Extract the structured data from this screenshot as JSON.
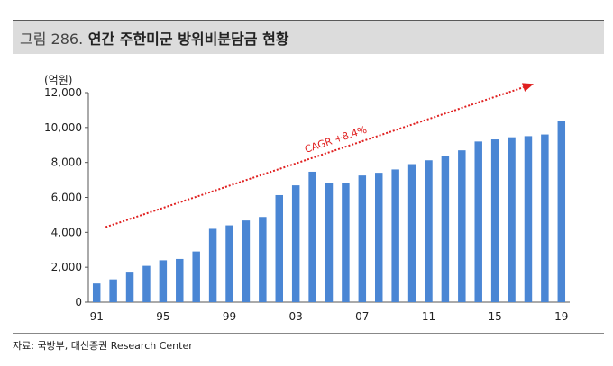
{
  "header": {
    "figure_label": "그림 286.",
    "title": "연간 주한미군 방위비분담금 현황"
  },
  "source_note": "자료: 국방부, 대신증권 Research Center",
  "chart_data": {
    "type": "bar",
    "unit_label": "(억원)",
    "categories": [
      "91",
      "92",
      "93",
      "94",
      "95",
      "96",
      "97",
      "98",
      "99",
      "00",
      "01",
      "02",
      "03",
      "04",
      "05",
      "06",
      "07",
      "08",
      "09",
      "10",
      "11",
      "12",
      "13",
      "14",
      "15",
      "16",
      "17",
      "18",
      "19"
    ],
    "tick_labels": [
      {
        "category": "91",
        "text": "91"
      },
      {
        "category": "95",
        "text": "95"
      },
      {
        "category": "99",
        "text": "99"
      },
      {
        "category": "03",
        "text": "03"
      },
      {
        "category": "07",
        "text": "07"
      },
      {
        "category": "11",
        "text": "11"
      },
      {
        "category": "15",
        "text": "15"
      },
      {
        "category": "19",
        "text": "19"
      }
    ],
    "values": [
      1073,
      1305,
      1694,
      2080,
      2400,
      2475,
      2904,
      4200,
      4400,
      4680,
      4880,
      6130,
      6690,
      7470,
      6800,
      6800,
      7255,
      7410,
      7600,
      7904,
      8125,
      8361,
      8695,
      9200,
      9320,
      9441,
      9507,
      9602,
      10389
    ],
    "ylim": [
      0,
      12000
    ],
    "yticks": [
      0,
      2000,
      4000,
      6000,
      8000,
      10000,
      12000
    ],
    "ytick_labels": [
      "0",
      "2,000",
      "4,000",
      "6,000",
      "8,000",
      "10,000",
      "12,000"
    ],
    "bar_color": "#4a86d4",
    "annotation": {
      "text": "CAGR +8.4%",
      "color": "#e02020",
      "from": {
        "category": "91",
        "value": 4300
      },
      "to": {
        "category": "17",
        "value": 12500
      }
    }
  }
}
